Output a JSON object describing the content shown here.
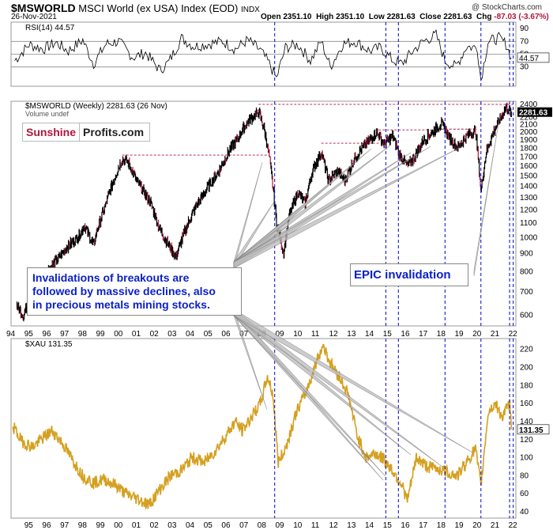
{
  "header": {
    "symbol": "$MSWORLD",
    "name": "MSCI World (ex USA) Index (EOD)",
    "exchange": "INDX",
    "date": "26-Nov-2021",
    "open_label": "Open",
    "open": "2351.10",
    "high_label": "High",
    "high": "2351.10",
    "low_label": "Low",
    "low": "2281.63",
    "close_label": "Close",
    "close": "2281.63",
    "chg_label": "Chg",
    "chg": "-87.03 (-3.67%)",
    "credit": "@ StockCharts.com"
  },
  "logo": {
    "part1": "Sunshine",
    "part2": "Profits.com"
  },
  "annotations": {
    "left_callout": [
      "Invalidations of breakouts are",
      "followed by massive declines, also",
      "in precious metals mining stocks."
    ],
    "right_callout": "EPIC invalidation"
  },
  "colors": {
    "accent_line": "#b0163c",
    "vline": "#1a1ad0",
    "xau": "#d4a020",
    "price": "#000000",
    "callout_text": "#0a1fc8"
  },
  "chart_data": [
    {
      "type": "line",
      "name": "RSI panel",
      "legend": "RSI(14) 44.57",
      "last_value_label": "44.57",
      "ylim": [
        0,
        100
      ],
      "yticks": [
        30,
        50,
        70,
        90
      ],
      "reference_lines": [
        30,
        50,
        70
      ],
      "x_range": [
        1994,
        2022
      ],
      "x": [
        1994.2,
        1995.0,
        1995.8,
        1996.5,
        1997.2,
        1998.0,
        1998.6,
        1999.3,
        2000.0,
        2000.8,
        2001.5,
        2002.3,
        2002.8,
        2003.5,
        2004.2,
        2005.0,
        2005.8,
        2006.5,
        2007.2,
        2007.9,
        2008.4,
        2008.8,
        2009.3,
        2010.0,
        2010.7,
        2011.3,
        2011.8,
        2012.5,
        2013.2,
        2014.0,
        2014.6,
        2015.3,
        2015.8,
        2016.4,
        2017.0,
        2017.7,
        2018.2,
        2018.8,
        2019.4,
        2020.0,
        2020.2,
        2020.6,
        2021.2,
        2021.6,
        2021.9
      ],
      "y": [
        40,
        65,
        58,
        68,
        55,
        72,
        35,
        66,
        70,
        45,
        52,
        25,
        38,
        75,
        62,
        66,
        70,
        58,
        72,
        56,
        35,
        12,
        60,
        65,
        40,
        70,
        30,
        66,
        70,
        55,
        60,
        40,
        35,
        55,
        70,
        80,
        40,
        30,
        62,
        60,
        10,
        70,
        75,
        66,
        44.57
      ]
    },
    {
      "type": "line",
      "name": "MSWORLD weekly",
      "legend": "$MSWORLD (Weekly) 2281.63 (26 Nov)",
      "sublegend": "Volume undef",
      "last_value_label": "2281.63",
      "scale": "log",
      "ylim": [
        560,
        2450
      ],
      "yticks": [
        600,
        700,
        800,
        900,
        1000,
        1100,
        1200,
        1300,
        1400,
        1500,
        1600,
        1700,
        1800,
        1900,
        2000,
        2100,
        2200,
        2400
      ],
      "x_range": [
        1994,
        2022
      ],
      "x_tick_labels": [
        "94",
        "95",
        "96",
        "97",
        "98",
        "99",
        "00",
        "01",
        "02",
        "03",
        "04",
        "05",
        "06",
        "07",
        "08",
        "09",
        "10",
        "11",
        "12",
        "13",
        "14",
        "15",
        "16",
        "17",
        "18",
        "19",
        "20",
        "21",
        "22"
      ],
      "x": [
        1994.3,
        1994.7,
        1995.0,
        1995.5,
        1996.0,
        1996.6,
        1997.2,
        1997.7,
        1998.1,
        1998.6,
        1998.8,
        1999.3,
        1999.8,
        2000.2,
        2000.6,
        2001.0,
        2001.4,
        2001.8,
        2002.3,
        2002.8,
        2003.2,
        2003.8,
        2004.4,
        2005.0,
        2005.6,
        2006.2,
        2006.6,
        2007.2,
        2007.8,
        2008.1,
        2008.4,
        2008.8,
        2009.2,
        2009.5,
        2010.0,
        2010.4,
        2010.8,
        2011.3,
        2011.7,
        2012.2,
        2012.6,
        2013.2,
        2013.8,
        2014.4,
        2014.8,
        2015.3,
        2015.6,
        2016.1,
        2016.5,
        2017.0,
        2017.5,
        2018.0,
        2018.4,
        2018.9,
        2019.4,
        2019.9,
        2020.2,
        2020.5,
        2020.9,
        2021.3,
        2021.6,
        2021.9
      ],
      "y": [
        640,
        600,
        660,
        720,
        800,
        870,
        950,
        1000,
        1080,
        950,
        1050,
        1250,
        1500,
        1680,
        1620,
        1450,
        1350,
        1250,
        1050,
        950,
        880,
        1080,
        1250,
        1400,
        1550,
        1780,
        1900,
        2150,
        2280,
        2050,
        1700,
        1100,
        900,
        1150,
        1350,
        1250,
        1550,
        1750,
        1450,
        1550,
        1450,
        1700,
        1850,
        2000,
        1850,
        1950,
        1750,
        1600,
        1700,
        1900,
        2000,
        2120,
        1950,
        1800,
        1950,
        2020,
        1350,
        1750,
        2000,
        2200,
        2350,
        2281.63
      ],
      "reference_lines": [
        {
          "x_start": 2000.2,
          "x_end": 2008.4,
          "y": 1720
        },
        {
          "x_start": 2011.3,
          "x_end": 2014.5,
          "y": 1860
        },
        {
          "x_start": 2014.5,
          "x_end": 2018.0,
          "y": 2030
        },
        {
          "x_start": 2018.0,
          "x_end": 2020.0,
          "y": 2040
        },
        {
          "x_start": 2007.8,
          "x_end": 2022.0,
          "y": 2400
        }
      ]
    },
    {
      "type": "line",
      "name": "XAU",
      "legend": "$XAU 131.35",
      "last_value_label": "131.35",
      "ylim": [
        33,
        232
      ],
      "yticks": [
        40,
        60,
        80,
        100,
        120,
        140,
        160,
        180,
        200,
        220
      ],
      "x_range": [
        1994,
        2022
      ],
      "x_tick_labels": [
        "95",
        "96",
        "97",
        "98",
        "99",
        "00",
        "01",
        "02",
        "03",
        "04",
        "05",
        "06",
        "07",
        "08",
        "09",
        "10",
        "11",
        "12",
        "13",
        "14",
        "15",
        "16",
        "17",
        "18",
        "19",
        "20",
        "21",
        "22"
      ],
      "x": [
        1994.1,
        1994.6,
        1995.2,
        1995.8,
        1996.3,
        1996.9,
        1997.5,
        1998.0,
        1998.6,
        1999.2,
        1999.8,
        2000.4,
        2001.0,
        2001.7,
        2002.3,
        2002.9,
        2003.5,
        2004.1,
        2004.8,
        2005.4,
        2006.0,
        2006.5,
        2006.9,
        2007.4,
        2007.9,
        2008.3,
        2008.6,
        2008.9,
        2009.3,
        2009.9,
        2010.5,
        2011.0,
        2011.4,
        2011.8,
        2012.3,
        2012.8,
        2013.3,
        2013.8,
        2014.3,
        2014.8,
        2015.3,
        2015.8,
        2016.1,
        2016.6,
        2017.2,
        2017.8,
        2018.3,
        2018.9,
        2019.4,
        2019.9,
        2020.2,
        2020.6,
        2021.0,
        2021.4,
        2021.8,
        2021.9
      ],
      "y": [
        135,
        118,
        112,
        122,
        130,
        115,
        95,
        80,
        72,
        76,
        70,
        60,
        55,
        48,
        65,
        80,
        86,
        100,
        95,
        108,
        125,
        140,
        130,
        145,
        160,
        190,
        170,
        95,
        110,
        150,
        175,
        205,
        225,
        205,
        190,
        170,
        125,
        100,
        105,
        98,
        85,
        70,
        52,
        100,
        90,
        88,
        84,
        80,
        95,
        110,
        68,
        150,
        160,
        145,
        160,
        131.35
      ]
    }
  ],
  "vertical_lines_x": [
    2008.7,
    2014.9,
    2015.6,
    2018.2,
    2020.2,
    2021.8,
    2022.0
  ]
}
